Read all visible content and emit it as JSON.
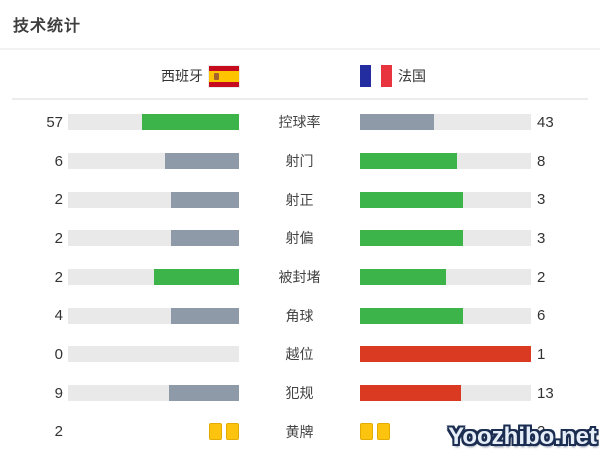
{
  "page_title": "技术统计",
  "header": {
    "home_team": "西班牙",
    "away_team": "法国"
  },
  "stats": [
    {
      "label": "控球率",
      "home": "57",
      "away": "43",
      "home_pct": 57,
      "away_pct": 43,
      "home_color": "#3db44a",
      "away_color": "#8f9aa8"
    },
    {
      "label": "射门",
      "home": "6",
      "away": "8",
      "home_pct": 43,
      "away_pct": 57,
      "home_color": "#8f9aa8",
      "away_color": "#3db44a"
    },
    {
      "label": "射正",
      "home": "2",
      "away": "3",
      "home_pct": 40,
      "away_pct": 60,
      "home_color": "#8f9aa8",
      "away_color": "#3db44a"
    },
    {
      "label": "射偏",
      "home": "2",
      "away": "3",
      "home_pct": 40,
      "away_pct": 60,
      "home_color": "#8f9aa8",
      "away_color": "#3db44a"
    },
    {
      "label": "被封堵",
      "home": "2",
      "away": "2",
      "home_pct": 50,
      "away_pct": 50,
      "home_color": "#3db44a",
      "away_color": "#3db44a"
    },
    {
      "label": "角球",
      "home": "4",
      "away": "6",
      "home_pct": 40,
      "away_pct": 60,
      "home_color": "#8f9aa8",
      "away_color": "#3db44a"
    },
    {
      "label": "越位",
      "home": "0",
      "away": "1",
      "home_pct": 0,
      "away_pct": 100,
      "home_color": "#8f9aa8",
      "away_color": "#d93a21"
    },
    {
      "label": "犯规",
      "home": "9",
      "away": "13",
      "home_pct": 41,
      "away_pct": 59,
      "home_color": "#8f9aa8",
      "away_color": "#d93a21"
    },
    {
      "label": "黄牌",
      "home": "2",
      "away": "2"
    }
  ],
  "watermark": "Yoozhibo.net",
  "colors": {
    "green": "#3db44a",
    "gray_blue": "#8f9aa8",
    "red": "#d93a21",
    "bar_track": "#e9e9e9",
    "yellow_card": "#fcc30f",
    "text": "#333333"
  },
  "chart_data": {
    "type": "bar",
    "title": "技术统计",
    "categories": [
      "控球率",
      "射门",
      "射正",
      "射偏",
      "被封堵",
      "角球",
      "越位",
      "犯规",
      "黄牌"
    ],
    "series": [
      {
        "name": "西班牙",
        "values": [
          57,
          6,
          2,
          2,
          2,
          4,
          0,
          9,
          2
        ]
      },
      {
        "name": "法国",
        "values": [
          43,
          8,
          3,
          3,
          2,
          6,
          1,
          13,
          2
        ]
      }
    ],
    "legend_position": "top",
    "grid": false,
    "orientation": "horizontal-paired",
    "note": "控球率以百分比显示，其余为计数；黄牌行以黄牌图标显示"
  }
}
